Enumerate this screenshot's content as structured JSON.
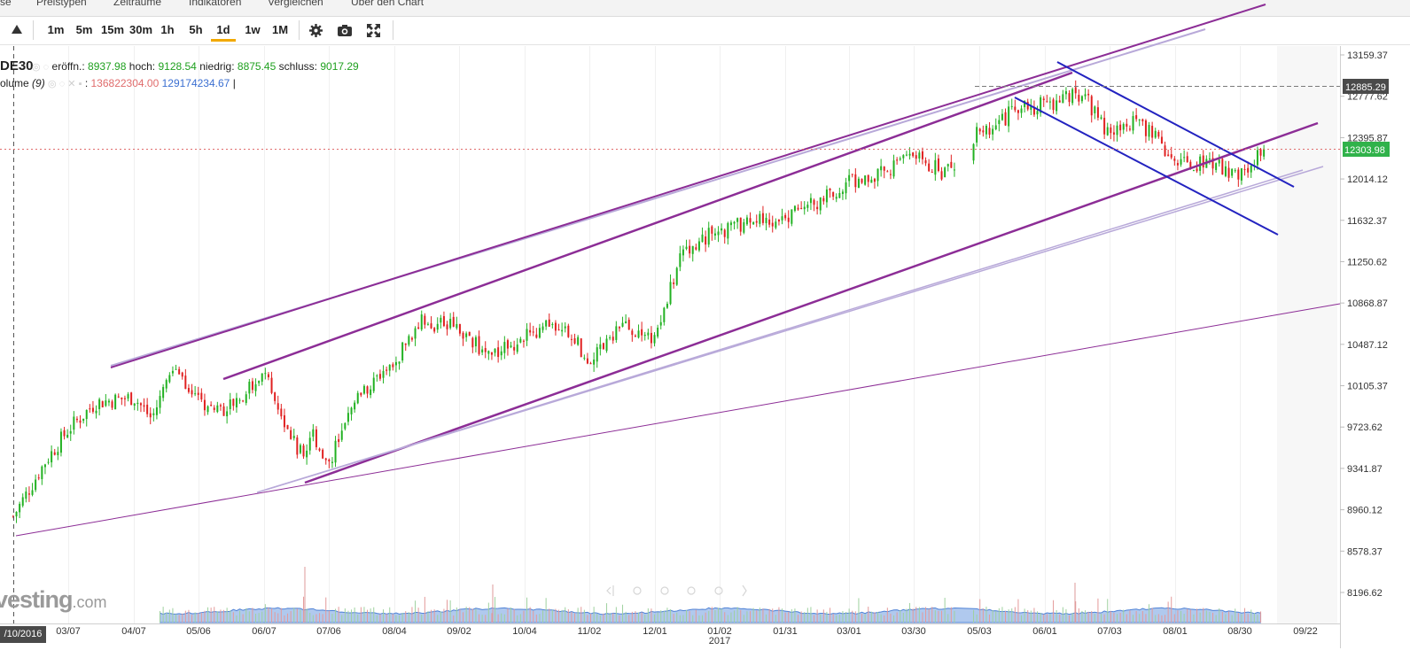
{
  "menu": {
    "items": [
      "se",
      "Preistypen",
      "Zeiträume",
      "Indikatoren",
      "Vergleichen",
      "Über den Chart"
    ]
  },
  "toolbar": {
    "timeframes": [
      "1m",
      "5m",
      "15m",
      "30m",
      "1h",
      "5h",
      "1d",
      "1w",
      "1M"
    ],
    "active": "1d",
    "icons": [
      "chart-type-icon",
      "settings-gear-icon",
      "camera-icon",
      "fullscreen-icon"
    ]
  },
  "instrument": {
    "symbol": "DE30",
    "open_label": "eröffn.:",
    "open": "8937.98",
    "high_label": "hoch:",
    "high": "9128.54",
    "low_label": "niedrig:",
    "low": "8875.45",
    "close_label": "schluss:",
    "close": "9017.29",
    "volume_label": "olume",
    "volume_period": "(9)",
    "volume_a": "136822304.00",
    "volume_b": "129174234.67",
    "volume_sep": "|"
  },
  "branding": {
    "logo_main": "vesting",
    "logo_suffix": ".com",
    "cursor_date": "/10/2016"
  },
  "colors": {
    "up": "#22b122",
    "down": "#e02020",
    "channel": "#8c2d96",
    "channel_light": "#b8a9d9",
    "downtrend": "#2323c0",
    "volume_area": "#6f9de0",
    "price_badge": "#30b24a",
    "crosshair_badge": "#4a4a4a"
  },
  "chart_data": {
    "type": "candlestick",
    "title": "DE30",
    "y_ticks": [
      "13159.37",
      "12777.62",
      "12395.87",
      "12014.12",
      "11632.37",
      "11250.62",
      "10868.87",
      "10487.12",
      "10105.37",
      "9723.62",
      "9341.87",
      "8960.12",
      "8578.37",
      "8196.62"
    ],
    "y_range": [
      8196.62,
      13159.37
    ],
    "x_ticks": [
      "03/07",
      "04/07",
      "05/06",
      "06/07",
      "07/06",
      "08/04",
      "09/02",
      "10/04",
      "11/02",
      "12/01",
      "01/02",
      "01/31",
      "03/01",
      "03/30",
      "05/03",
      "06/01",
      "07/03",
      "08/01",
      "08/30",
      "09/22"
    ],
    "year_marker": "2017",
    "current_price": "12303.98",
    "crosshair_price": "12885.29",
    "price_path": [
      [
        "02/10/2016",
        8900
      ],
      [
        "02/25/2016",
        9400
      ],
      [
        "03/07/2016",
        9700
      ],
      [
        "03/20/2016",
        9950
      ],
      [
        "04/07/2016",
        10000
      ],
      [
        "04/15/2016",
        9800
      ],
      [
        "04/25/2016",
        10300
      ],
      [
        "05/06/2016",
        9950
      ],
      [
        "05/20/2016",
        9900
      ],
      [
        "06/07/2016",
        10200
      ],
      [
        "06/15/2016",
        9850
      ],
      [
        "06/24/2016",
        9450
      ],
      [
        "06/29/2016",
        9650
      ],
      [
        "07/06/2016",
        9400
      ],
      [
        "07/20/2016",
        10050
      ],
      [
        "08/04/2016",
        10300
      ],
      [
        "08/15/2016",
        10700
      ],
      [
        "09/02/2016",
        10650
      ],
      [
        "09/15/2016",
        10400
      ],
      [
        "10/04/2016",
        10550
      ],
      [
        "10/20/2016",
        10700
      ],
      [
        "11/02/2016",
        10350
      ],
      [
        "11/15/2016",
        10650
      ],
      [
        "12/01/2016",
        10550
      ],
      [
        "12/15/2016",
        11350
      ],
      [
        "01/02/2017",
        11550
      ],
      [
        "01/31/2017",
        11650
      ],
      [
        "02/20/2017",
        11850
      ],
      [
        "03/01/2017",
        12000
      ],
      [
        "03/15/2017",
        12050
      ],
      [
        "03/30/2017",
        12250
      ],
      [
        "04/15/2017",
        12050
      ],
      [
        "05/03/2017",
        12450
      ],
      [
        "05/20/2017",
        12650
      ],
      [
        "06/01/2017",
        12700
      ],
      [
        "06/20/2017",
        12800
      ],
      [
        "07/03/2017",
        12400
      ],
      [
        "07/15/2017",
        12550
      ],
      [
        "08/01/2017",
        12200
      ],
      [
        "08/15/2017",
        12150
      ],
      [
        "08/30/2017",
        12050
      ],
      [
        "09/08/2017",
        12300
      ]
    ]
  }
}
